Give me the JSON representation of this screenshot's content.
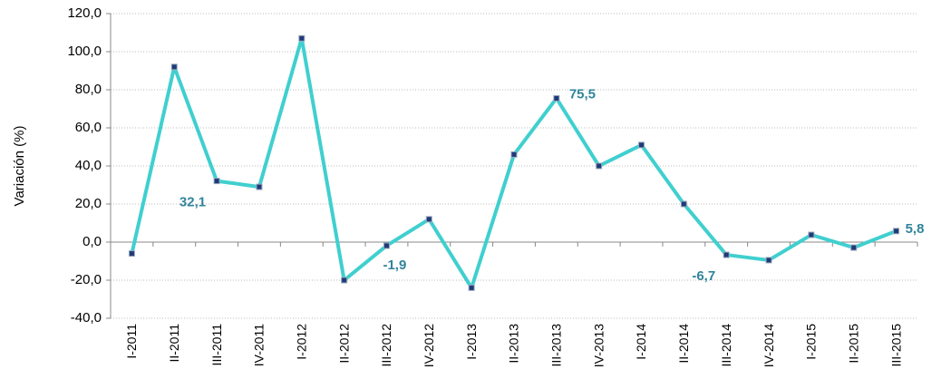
{
  "chart_data": {
    "type": "line",
    "y_label": "Variación (%)",
    "categories": [
      "I-2011",
      "II-2011",
      "III-2011",
      "IV-2011",
      "I-2012",
      "II-2012",
      "III-2012",
      "IV-2012",
      "I-2013",
      "II-2013",
      "III-2013",
      "IV-2013",
      "I-2014",
      "II-2014",
      "III-2014",
      "IV-2014",
      "I-2015",
      "II-2015",
      "III-2015"
    ],
    "series": [
      {
        "color": "#40cfcf",
        "marker_color": "#1f3a7a",
        "values": [
          -6.0,
          92.0,
          32.1,
          29.0,
          107.0,
          -20.0,
          -1.9,
          12.0,
          -24.0,
          46.0,
          75.5,
          40.0,
          51.0,
          20.0,
          -6.7,
          -9.5,
          3.8,
          -2.9,
          5.8
        ],
        "value_labels": [
          null,
          null,
          "32,1",
          null,
          null,
          null,
          "-1,9",
          null,
          null,
          null,
          "75,5",
          null,
          null,
          null,
          "-6,7",
          null,
          null,
          null,
          "5,8"
        ]
      }
    ],
    "ylim": [
      -40,
      120
    ],
    "yticks": [
      {
        "value": -40,
        "label": "-40,0"
      },
      {
        "value": -20,
        "label": "-20,0"
      },
      {
        "value": 0,
        "label": "0,0"
      },
      {
        "value": 20,
        "label": "20,0"
      },
      {
        "value": 40,
        "label": "40,0"
      },
      {
        "value": 60,
        "label": "60,0"
      },
      {
        "value": 80,
        "label": "80,0"
      },
      {
        "value": 100,
        "label": "100,0"
      },
      {
        "value": 120,
        "label": "120,0"
      }
    ],
    "grid": true
  }
}
